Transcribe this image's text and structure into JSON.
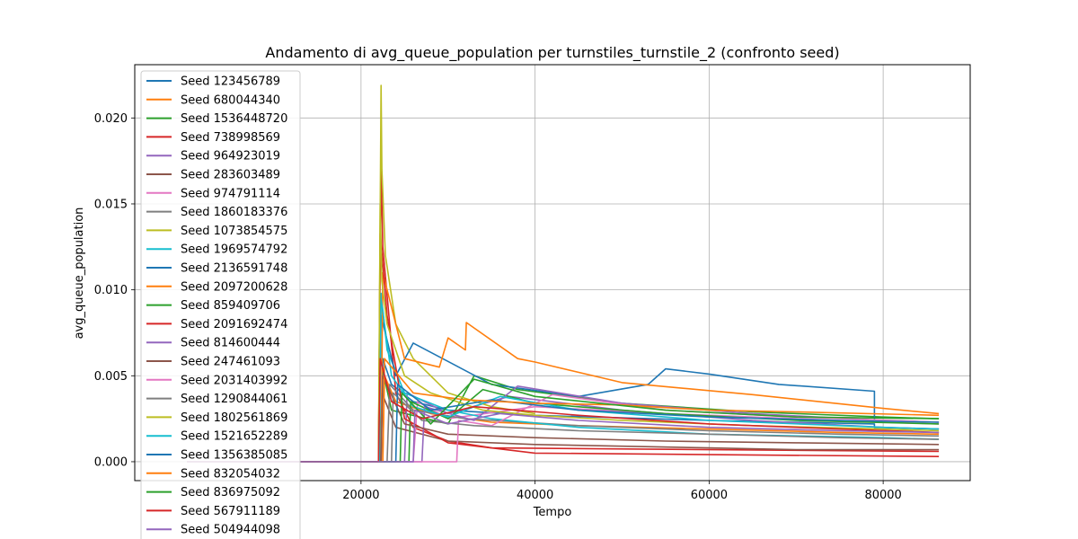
{
  "chart_data": {
    "type": "line",
    "title": "Andamento di avg_queue_population per turnstiles_turnstile_2 (confronto seed)",
    "xlabel": "Tempo",
    "ylabel": "avg_queue_population",
    "xlim": [
      -6000,
      90000
    ],
    "ylim": [
      -0.0011,
      0.0231
    ],
    "x_ticks": [
      {
        "value": 20000,
        "label": "20000"
      },
      {
        "value": 40000,
        "label": "40000"
      },
      {
        "value": 60000,
        "label": "60000"
      },
      {
        "value": 80000,
        "label": "80000"
      }
    ],
    "y_ticks": [
      {
        "value": 0.0,
        "label": "0.000"
      },
      {
        "value": 0.005,
        "label": "0.005"
      },
      {
        "value": 0.01,
        "label": "0.010"
      },
      {
        "value": 0.015,
        "label": "0.015"
      },
      {
        "value": 0.02,
        "label": "0.020"
      }
    ],
    "grid": true,
    "legend_position": "top-left",
    "colors": [
      "#1f77b4",
      "#ff7f0e",
      "#2ca02c",
      "#d62728",
      "#9467bd",
      "#8c564b",
      "#e377c2",
      "#7f7f7f",
      "#bcbd22",
      "#17becf"
    ],
    "series": [
      {
        "name": "Seed 123456789",
        "x": [
          0,
          22300,
          22500,
          23500,
          26000,
          30000,
          40000,
          60000,
          79000,
          79000,
          86400
        ],
        "y": [
          0,
          0,
          0.006,
          0.0045,
          0.0035,
          0.003,
          0.0027,
          0.0024,
          0.0022,
          0.002,
          0.0019
        ]
      },
      {
        "name": "Seed 680044340",
        "x": [
          0,
          22500,
          22700,
          24000,
          28000,
          35000,
          45000,
          60000,
          75000,
          86400
        ],
        "y": [
          0,
          0,
          0.005,
          0.0035,
          0.0028,
          0.0023,
          0.0021,
          0.0019,
          0.0017,
          0.0016
        ]
      },
      {
        "name": "Seed 1536448720",
        "x": [
          0,
          22000,
          22200,
          23500,
          30000,
          33000,
          38000,
          50000,
          65000,
          80000,
          86400
        ],
        "y": [
          0,
          0,
          0.006,
          0.003,
          0.0022,
          0.005,
          0.0042,
          0.0034,
          0.0029,
          0.0026,
          0.0025
        ]
      },
      {
        "name": "Seed 738998569",
        "x": [
          0,
          22000,
          22300,
          22500,
          24000,
          26000,
          30000,
          35000,
          86400
        ],
        "y": [
          0,
          0,
          0.0171,
          0.0125,
          0.004,
          0.002,
          0.0012,
          0.0008,
          0.0006
        ]
      },
      {
        "name": "Seed 964923019",
        "x": [
          0,
          25000,
          25300,
          30000,
          37000,
          50000,
          65000,
          80000,
          86400
        ],
        "y": [
          0,
          0,
          0.004,
          0.0028,
          0.0038,
          0.003,
          0.0024,
          0.002,
          0.0019
        ]
      },
      {
        "name": "Seed 283603489",
        "x": [
          0,
          22200,
          22400,
          24000,
          30000,
          40000,
          50000,
          60000,
          70000,
          86400
        ],
        "y": [
          0,
          0,
          0.004,
          0.002,
          0.0012,
          0.001,
          0.0009,
          0.0008,
          0.0007,
          0.0007
        ]
      },
      {
        "name": "Seed 974791114",
        "x": [
          0,
          26000,
          26500,
          30000,
          40000,
          55000,
          70000,
          80000,
          86400
        ],
        "y": [
          0,
          0,
          0.0035,
          0.0025,
          0.0032,
          0.0028,
          0.0025,
          0.0023,
          0.0022
        ]
      },
      {
        "name": "Seed 1860183376",
        "x": [
          0,
          23000,
          23300,
          26000,
          32000,
          45000,
          60000,
          75000,
          86400
        ],
        "y": [
          0,
          0,
          0.0045,
          0.003,
          0.0025,
          0.0021,
          0.0018,
          0.0016,
          0.0015
        ]
      },
      {
        "name": "Seed 1073854575",
        "x": [
          0,
          22000,
          22300,
          22400,
          22800,
          24000,
          26000,
          30000,
          35000,
          40000
        ],
        "y": [
          0,
          0,
          0.0219,
          0.017,
          0.012,
          0.008,
          0.006,
          0.004,
          0.0032,
          0.0028
        ]
      },
      {
        "name": "Seed 1969574792",
        "x": [
          0,
          22100,
          22300,
          23000,
          25000,
          30000,
          35000,
          45000,
          60000,
          80000,
          86400
        ],
        "y": [
          0,
          0,
          0.0098,
          0.0065,
          0.004,
          0.003,
          0.0025,
          0.002,
          0.0016,
          0.0014,
          0.0013
        ]
      },
      {
        "name": "Seed 2136591748",
        "x": [
          0,
          22000,
          22300,
          24000,
          26000,
          35000,
          45000,
          53000,
          55000,
          60000,
          68000,
          79000,
          79001
        ],
        "y": [
          0,
          0,
          0.0085,
          0.005,
          0.0069,
          0.0045,
          0.0038,
          0.0045,
          0.0054,
          0.0051,
          0.0045,
          0.0041,
          0.0023
        ]
      },
      {
        "name": "Seed 2097200628",
        "x": [
          0,
          22300,
          22500,
          25000,
          29000,
          30000,
          32000,
          32100,
          38000,
          40000,
          50000,
          65000,
          80000,
          86400
        ],
        "y": [
          0,
          0,
          0.011,
          0.006,
          0.0055,
          0.0072,
          0.0065,
          0.0081,
          0.006,
          0.0058,
          0.0046,
          0.0039,
          0.0031,
          0.0028
        ]
      },
      {
        "name": "Seed 859409706",
        "x": [
          0,
          25500,
          25700,
          30000,
          34000,
          40000,
          55000,
          70000,
          86400
        ],
        "y": [
          0,
          0,
          0.0035,
          0.0025,
          0.0042,
          0.0034,
          0.0028,
          0.0024,
          0.0022
        ]
      },
      {
        "name": "Seed 2091692474",
        "x": [
          0,
          22000,
          22200,
          23000,
          25000,
          30000,
          40000,
          86400
        ],
        "y": [
          0,
          0,
          0.0133,
          0.0085,
          0.0025,
          0.0011,
          0.0005,
          0.0003
        ]
      },
      {
        "name": "Seed 814600444",
        "x": [
          0,
          27000,
          27300,
          33000,
          38000,
          50000,
          65000,
          80000,
          86400
        ],
        "y": [
          0,
          0,
          0.0032,
          0.0024,
          0.0044,
          0.0034,
          0.0028,
          0.0024,
          0.0023
        ]
      },
      {
        "name": "Seed 247461093",
        "x": [
          0,
          22300,
          22500,
          25000,
          30000,
          40000,
          55000,
          70000,
          86400
        ],
        "y": [
          0,
          0,
          0.005,
          0.0022,
          0.0016,
          0.0014,
          0.0012,
          0.0011,
          0.001
        ]
      },
      {
        "name": "Seed 2031403992",
        "x": [
          0,
          31000,
          31200,
          35000,
          42000,
          55000,
          70000,
          86400
        ],
        "y": [
          0,
          0,
          0.0024,
          0.0021,
          0.0039,
          0.003,
          0.0026,
          0.0023
        ]
      },
      {
        "name": "Seed 1290844061",
        "x": [
          0,
          23500,
          23700,
          27000,
          33000,
          45000,
          60000,
          75000,
          86400
        ],
        "y": [
          0,
          0,
          0.004,
          0.0024,
          0.0021,
          0.0018,
          0.0016,
          0.0014,
          0.0013
        ]
      },
      {
        "name": "Seed 1802561869",
        "x": [
          0,
          22000,
          22200,
          22400,
          23000,
          25000,
          28000,
          34000,
          40000,
          50000,
          65000,
          80000,
          86400
        ],
        "y": [
          0,
          0,
          0.015,
          0.0105,
          0.008,
          0.005,
          0.004,
          0.003,
          0.0027,
          0.0024,
          0.0021,
          0.0019,
          0.0018
        ]
      },
      {
        "name": "Seed 1521652289",
        "x": [
          0,
          22100,
          22300,
          23500,
          26000,
          30000,
          36000,
          45000,
          60000,
          80000,
          86400
        ],
        "y": [
          0,
          0,
          0.0095,
          0.005,
          0.0032,
          0.0026,
          0.0038,
          0.003,
          0.0024,
          0.002,
          0.0019
        ]
      },
      {
        "name": "Seed 1356385085",
        "x": [
          0,
          24000,
          24200,
          28000,
          35000,
          45000,
          60000,
          75000,
          86400
        ],
        "y": [
          0,
          0,
          0.0045,
          0.003,
          0.0036,
          0.003,
          0.0026,
          0.0024,
          0.0023
        ]
      },
      {
        "name": "Seed 832054032",
        "x": [
          0,
          22500,
          22700,
          26000,
          32000,
          40000,
          50000,
          60000,
          70000,
          86400
        ],
        "y": [
          0,
          0,
          0.006,
          0.004,
          0.0036,
          0.0034,
          0.0033,
          0.003,
          0.0029,
          0.0027
        ]
      },
      {
        "name": "Seed 836975092",
        "x": [
          0,
          24500,
          24700,
          28000,
          33000,
          40000,
          55000,
          70000,
          86400
        ],
        "y": [
          0,
          0,
          0.004,
          0.0022,
          0.0048,
          0.0038,
          0.003,
          0.0026,
          0.0025
        ]
      },
      {
        "name": "Seed 567911189",
        "x": [
          0,
          22000,
          22200,
          23500,
          27000,
          33000,
          45000,
          60000,
          75000,
          86400
        ],
        "y": [
          0,
          0,
          0.006,
          0.0035,
          0.0025,
          0.0032,
          0.0027,
          0.0022,
          0.0019,
          0.0017
        ]
      },
      {
        "name": "Seed 504944098",
        "x": [
          0,
          26000,
          26200,
          30000,
          36000,
          45000,
          60000,
          75000,
          86400
        ],
        "y": [
          0,
          0,
          0.003,
          0.0022,
          0.0028,
          0.0024,
          0.002,
          0.0018,
          0.0017
        ]
      }
    ]
  }
}
